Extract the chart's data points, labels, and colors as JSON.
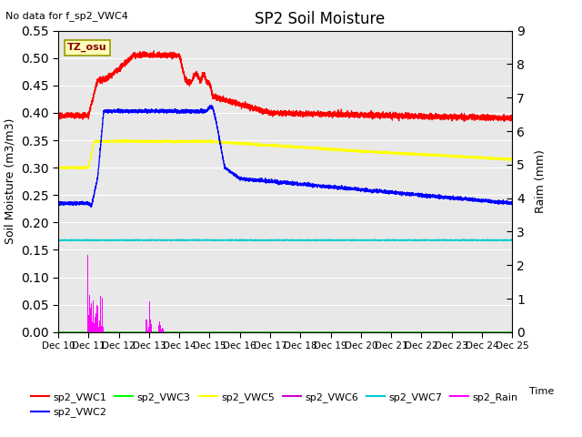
{
  "title": "SP2 Soil Moisture",
  "subtitle": "No data for f_sp2_VWC4",
  "xlabel": "Time",
  "ylabel_left": "Soil Moisture (m3/m3)",
  "ylabel_right": "Raim (mm)",
  "ylim_left": [
    0.0,
    0.55
  ],
  "ylim_right": [
    0.0,
    9.0
  ],
  "yticks_left": [
    0.0,
    0.05,
    0.1,
    0.15,
    0.2,
    0.25,
    0.3,
    0.35,
    0.4,
    0.45,
    0.5,
    0.55
  ],
  "yticks_right": [
    0.0,
    1.0,
    2.0,
    3.0,
    4.0,
    5.0,
    6.0,
    7.0,
    8.0,
    9.0
  ],
  "tz_label": "TZ_osu",
  "plot_bg_color": "#e8e8e8",
  "legend_entries": [
    {
      "label": "sp2_VWC1",
      "color": "#ff0000"
    },
    {
      "label": "sp2_VWC2",
      "color": "#0000ff"
    },
    {
      "label": "sp2_VWC3",
      "color": "#00ff00"
    },
    {
      "label": "sp2_VWC5",
      "color": "#ffff00"
    },
    {
      "label": "sp2_VWC6",
      "color": "#cc00cc"
    },
    {
      "label": "sp2_VWC7",
      "color": "#00cccc"
    },
    {
      "label": "sp2_Rain",
      "color": "#ff00ff"
    }
  ],
  "num_points": 5000
}
